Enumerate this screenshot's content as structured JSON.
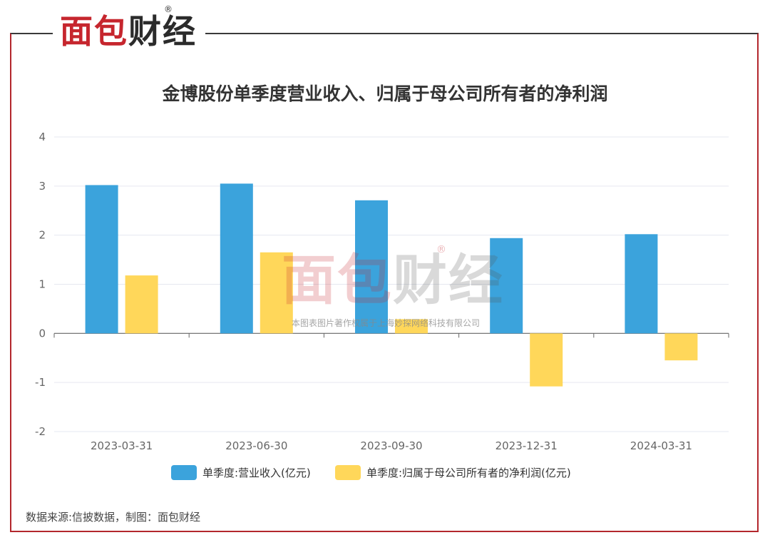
{
  "brand": {
    "logo_part1": "面包",
    "logo_part2": "财经",
    "registered_mark": "®"
  },
  "title": "金博股份单季度营业收入、归属于母公司所有者的净利润",
  "watermark": {
    "logo_part1": "面包",
    "logo_part2": "财经",
    "registered_mark": "®",
    "text": "本图表图片著作权属于上海妙探网络科技有限公司"
  },
  "source": "数据来源:信披数据，制图：面包财经",
  "colors": {
    "brand_red": "#c6262e",
    "series_revenue": "#3ba3dc",
    "series_profit": "#ffd75a"
  },
  "chart_data": {
    "type": "bar",
    "categories": [
      "2023-03-31",
      "2023-06-30",
      "2023-09-30",
      "2023-12-31",
      "2024-03-31"
    ],
    "series": [
      {
        "name": "单季度:营业收入(亿元)",
        "values": [
          3.02,
          3.05,
          2.71,
          1.94,
          2.02
        ]
      },
      {
        "name": "单季度:归属于母公司所有者的净利润(亿元)",
        "values": [
          1.18,
          1.65,
          0.29,
          -1.08,
          -0.55
        ]
      }
    ],
    "ylim": [
      -2,
      4
    ],
    "yticks": [
      "-2",
      "-1",
      "0",
      "1",
      "2",
      "3",
      "4"
    ],
    "grid": true,
    "legend_position": "bottom"
  }
}
